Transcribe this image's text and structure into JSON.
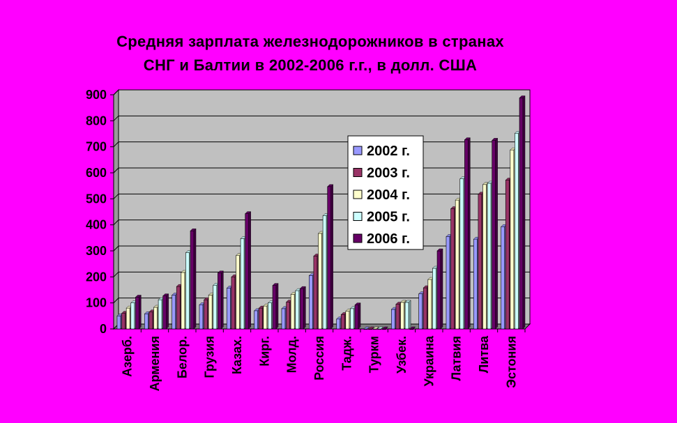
{
  "chart_data": {
    "type": "bar",
    "title_lines": [
      "Средняя зарплата железнодорожников в странах",
      "СНГ и Балтии в 2002-2006 г.г., в долл. США"
    ],
    "categories": [
      "Азерб.",
      "Армения",
      "Белор.",
      "Грузия",
      "Казах.",
      "Кирг.",
      "Молд.",
      "Россия",
      "Тадж.",
      "Туркм",
      "Узбек.",
      "Украина",
      "Латвия",
      "Литва",
      "Эстония"
    ],
    "series": [
      {
        "name": "2002 г.",
        "color": "#9999FF",
        "values": [
          50,
          58,
          130,
          93,
          157,
          70,
          78,
          205,
          38,
          0,
          75,
          135,
          355,
          345,
          393
        ]
      },
      {
        "name": "2003 г.",
        "color": "#993366",
        "values": [
          60,
          65,
          163,
          112,
          200,
          80,
          103,
          280,
          55,
          0,
          95,
          158,
          462,
          518,
          572
        ]
      },
      {
        "name": "2004 г.",
        "color": "#FFFFCC",
        "values": [
          80,
          83,
          217,
          130,
          282,
          88,
          133,
          367,
          68,
          0,
          102,
          190,
          495,
          555,
          688
        ]
      },
      {
        "name": "2005 г.",
        "color": "#CCFFFF",
        "values": [
          100,
          112,
          293,
          168,
          347,
          100,
          147,
          435,
          78,
          0,
          102,
          233,
          577,
          560,
          752
        ]
      },
      {
        "name": "2006 г.",
        "color": "#660066",
        "values": [
          122,
          127,
          377,
          215,
          443,
          167,
          155,
          547,
          92,
          0,
          0,
          300,
          727,
          725,
          888
        ]
      }
    ],
    "ylim": [
      0,
      900
    ],
    "yticks": [
      0,
      100,
      200,
      300,
      400,
      500,
      600,
      700,
      800,
      900
    ],
    "legend_position": "inside-center",
    "plot_background": "#C0C0C0",
    "grid": true
  }
}
